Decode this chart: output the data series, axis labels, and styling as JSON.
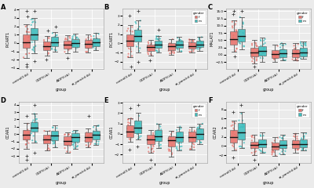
{
  "panels": [
    "A",
    "B",
    "C",
    "D",
    "E",
    "F"
  ],
  "ylabels": [
    "PICART1",
    "PICART1",
    "MALAT1",
    "CCAR1",
    "CCAR1",
    "CCAR2"
  ],
  "group_keys": [
    "control",
    "CIDP",
    "AIDP",
    "at_para"
  ],
  "group_labels": [
    "control(f-tb)",
    "CIDP(f-tb)",
    "AIDP(f-tb)",
    "at_para(nf-tb)"
  ],
  "gender_colors": {
    "f": "#E8736C",
    "m": "#3DBDBD"
  },
  "background": "#EBEBEB",
  "grid_color": "#FFFFFF",
  "panel_data": {
    "A": {
      "f": {
        "control": {
          "q1": -0.6,
          "median": 0.1,
          "q3": 1.0,
          "whislo": -1.8,
          "whishi": 2.2,
          "fliers_lo": [
            -2.5,
            -2.8
          ],
          "fliers_hi": [
            3.2,
            3.8
          ]
        },
        "CIDP": {
          "q1": -0.9,
          "median": -0.4,
          "q3": 0.2,
          "whislo": -1.5,
          "whishi": 0.8,
          "fliers_lo": [
            -2.0
          ],
          "fliers_hi": [
            1.5
          ]
        },
        "AIDP": {
          "q1": -0.7,
          "median": -0.2,
          "q3": 0.3,
          "whislo": -1.2,
          "whishi": 0.9,
          "fliers_lo": [
            -1.8
          ],
          "fliers_hi": []
        },
        "at_para": {
          "q1": -0.6,
          "median": -0.1,
          "q3": 0.4,
          "whislo": -1.1,
          "whishi": 1.0,
          "fliers_lo": [],
          "fliers_hi": []
        }
      },
      "m": {
        "control": {
          "q1": 0.4,
          "median": 1.0,
          "q3": 1.8,
          "whislo": -1.2,
          "whishi": 3.0,
          "fliers_lo": [
            -2.2
          ],
          "fliers_hi": [
            3.8
          ]
        },
        "CIDP": {
          "q1": -0.4,
          "median": 0.1,
          "q3": 0.7,
          "whislo": -1.0,
          "whishi": 1.3,
          "fliers_lo": [],
          "fliers_hi": [
            2.0
          ]
        },
        "AIDP": {
          "q1": -0.5,
          "median": 0.0,
          "q3": 0.5,
          "whislo": -1.0,
          "whishi": 1.1,
          "fliers_lo": [],
          "fliers_hi": []
        },
        "at_para": {
          "q1": -0.4,
          "median": 0.1,
          "q3": 0.6,
          "whislo": -0.9,
          "whishi": 1.2,
          "fliers_lo": [],
          "fliers_hi": []
        }
      }
    },
    "B": {
      "f": {
        "control": {
          "q1": -0.3,
          "median": 0.3,
          "q3": 1.0,
          "whislo": -1.5,
          "whishi": 2.0,
          "fliers_lo": [
            -2.5
          ],
          "fliers_hi": [
            3.0
          ]
        },
        "CIDP": {
          "q1": -0.8,
          "median": -0.4,
          "q3": -0.1,
          "whislo": -1.3,
          "whishi": 0.4,
          "fliers_lo": [
            -1.8
          ],
          "fliers_hi": []
        },
        "AIDP": {
          "q1": -0.7,
          "median": -0.3,
          "q3": 0.0,
          "whislo": -1.2,
          "whishi": 0.5,
          "fliers_lo": [],
          "fliers_hi": []
        },
        "at_para": {
          "q1": -0.6,
          "median": -0.3,
          "q3": 0.1,
          "whislo": -1.0,
          "whishi": 0.5,
          "fliers_lo": [],
          "fliers_hi": []
        }
      },
      "m": {
        "control": {
          "q1": 0.2,
          "median": 0.8,
          "q3": 1.5,
          "whislo": -1.0,
          "whishi": 2.5,
          "fliers_lo": [
            -2.0
          ],
          "fliers_hi": [
            3.5
          ]
        },
        "CIDP": {
          "q1": -0.5,
          "median": -0.1,
          "q3": 0.3,
          "whislo": -1.0,
          "whishi": 0.8,
          "fliers_lo": [],
          "fliers_hi": [
            1.5
          ]
        },
        "AIDP": {
          "q1": -0.5,
          "median": -0.1,
          "q3": 0.3,
          "whislo": -0.9,
          "whishi": 0.7,
          "fliers_lo": [],
          "fliers_hi": []
        },
        "at_para": {
          "q1": -0.4,
          "median": -0.1,
          "q3": 0.3,
          "whislo": -0.8,
          "whishi": 0.7,
          "fliers_lo": [],
          "fliers_hi": []
        }
      }
    },
    "C": {
      "f": {
        "control": {
          "q1": 3.5,
          "median": 5.5,
          "q3": 8.0,
          "whislo": 1.0,
          "whishi": 12.0,
          "fliers_lo": [
            -0.5
          ],
          "fliers_hi": [
            14.0,
            15.0
          ]
        },
        "CIDP": {
          "q1": -0.5,
          "median": 0.8,
          "q3": 2.5,
          "whislo": -3.0,
          "whishi": 5.0,
          "fliers_lo": [
            -4.0
          ],
          "fliers_hi": []
        },
        "AIDP": {
          "q1": -1.0,
          "median": 0.2,
          "q3": 1.5,
          "whislo": -2.5,
          "whishi": 3.5,
          "fliers_lo": [],
          "fliers_hi": []
        },
        "at_para": {
          "q1": -0.8,
          "median": 0.5,
          "q3": 2.0,
          "whislo": -2.0,
          "whishi": 4.0,
          "fliers_lo": [],
          "fliers_hi": []
        }
      },
      "m": {
        "control": {
          "q1": 4.5,
          "median": 6.5,
          "q3": 9.0,
          "whislo": 2.0,
          "whishi": 13.0,
          "fliers_lo": [],
          "fliers_hi": [
            15.0
          ]
        },
        "CIDP": {
          "q1": -0.3,
          "median": 1.2,
          "q3": 3.0,
          "whislo": -2.5,
          "whishi": 6.0,
          "fliers_lo": [],
          "fliers_hi": []
        },
        "AIDP": {
          "q1": -0.8,
          "median": 0.5,
          "q3": 2.0,
          "whislo": -2.0,
          "whishi": 4.0,
          "fliers_lo": [],
          "fliers_hi": []
        },
        "at_para": {
          "q1": -0.5,
          "median": 0.8,
          "q3": 2.5,
          "whislo": -1.5,
          "whishi": 4.5,
          "fliers_lo": [],
          "fliers_hi": []
        }
      }
    },
    "D": {
      "f": {
        "control": {
          "q1": -0.7,
          "median": -0.1,
          "q3": 0.6,
          "whislo": -2.0,
          "whishi": 1.5,
          "fliers_lo": [
            -3.0,
            -3.5
          ],
          "fliers_hi": [
            2.5
          ]
        },
        "CIDP": {
          "q1": -1.3,
          "median": -0.7,
          "q3": -0.1,
          "whislo": -2.2,
          "whishi": 0.5,
          "fliers_lo": [],
          "fliers_hi": []
        },
        "AIDP": {
          "q1": -1.5,
          "median": -0.9,
          "q3": -0.3,
          "whislo": -2.5,
          "whishi": 0.2,
          "fliers_lo": [],
          "fliers_hi": []
        },
        "at_para": {
          "q1": -1.0,
          "median": -0.4,
          "q3": 0.2,
          "whislo": -1.8,
          "whishi": 0.8,
          "fliers_lo": [],
          "fliers_hi": [
            2.5
          ]
        }
      },
      "m": {
        "control": {
          "q1": 0.3,
          "median": 0.9,
          "q3": 1.6,
          "whislo": -1.2,
          "whishi": 2.8,
          "fliers_lo": [
            -2.5
          ],
          "fliers_hi": [
            4.0
          ]
        },
        "CIDP": {
          "q1": -0.8,
          "median": -0.2,
          "q3": 0.5,
          "whislo": -1.8,
          "whishi": 1.2,
          "fliers_lo": [],
          "fliers_hi": []
        },
        "AIDP": {
          "q1": -1.0,
          "median": -0.4,
          "q3": 0.1,
          "whislo": -2.0,
          "whishi": 0.6,
          "fliers_lo": [],
          "fliers_hi": []
        },
        "at_para": {
          "q1": -0.7,
          "median": -0.1,
          "q3": 0.5,
          "whislo": -1.5,
          "whishi": 1.2,
          "fliers_lo": [],
          "fliers_hi": []
        }
      }
    },
    "E": {
      "f": {
        "control": {
          "q1": -0.3,
          "median": 0.2,
          "q3": 0.8,
          "whislo": -0.8,
          "whishi": 1.5,
          "fliers_lo": [
            -1.5
          ],
          "fliers_hi": [
            2.5
          ]
        },
        "CIDP": {
          "q1": -1.0,
          "median": -0.5,
          "q3": -0.1,
          "whislo": -1.8,
          "whishi": 0.4,
          "fliers_lo": [
            -2.5
          ],
          "fliers_hi": []
        },
        "AIDP": {
          "q1": -1.2,
          "median": -0.6,
          "q3": -0.2,
          "whislo": -2.2,
          "whishi": 0.3,
          "fliers_lo": [],
          "fliers_hi": []
        },
        "at_para": {
          "q1": -0.8,
          "median": -0.3,
          "q3": 0.2,
          "whislo": -1.5,
          "whishi": 0.7,
          "fliers_lo": [],
          "fliers_hi": []
        }
      },
      "m": {
        "control": {
          "q1": 0.1,
          "median": 0.6,
          "q3": 1.3,
          "whislo": -0.5,
          "whishi": 2.0,
          "fliers_lo": [
            -1.2
          ],
          "fliers_hi": [
            2.8
          ]
        },
        "CIDP": {
          "q1": -0.7,
          "median": -0.2,
          "q3": 0.4,
          "whislo": -1.4,
          "whishi": 1.0,
          "fliers_lo": [],
          "fliers_hi": []
        },
        "AIDP": {
          "q1": -0.8,
          "median": -0.3,
          "q3": 0.2,
          "whislo": -1.6,
          "whishi": 0.7,
          "fliers_lo": [],
          "fliers_hi": []
        },
        "at_para": {
          "q1": -0.5,
          "median": 0.0,
          "q3": 0.5,
          "whislo": -1.0,
          "whishi": 1.0,
          "fliers_lo": [],
          "fliers_hi": []
        }
      }
    },
    "F": {
      "f": {
        "control": {
          "q1": 0.8,
          "median": 2.0,
          "q3": 3.5,
          "whislo": -1.0,
          "whishi": 5.5,
          "fliers_lo": [
            -2.5
          ],
          "fliers_hi": [
            7.5
          ]
        },
        "CIDP": {
          "q1": -0.5,
          "median": 0.2,
          "q3": 1.0,
          "whislo": -2.0,
          "whishi": 2.5,
          "fliers_lo": [
            -3.0
          ],
          "fliers_hi": []
        },
        "AIDP": {
          "q1": -0.8,
          "median": -0.1,
          "q3": 0.7,
          "whislo": -2.2,
          "whishi": 2.0,
          "fliers_lo": [],
          "fliers_hi": []
        },
        "at_para": {
          "q1": -0.4,
          "median": 0.4,
          "q3": 1.2,
          "whislo": -1.5,
          "whishi": 2.8,
          "fliers_lo": [],
          "fliers_hi": []
        }
      },
      "m": {
        "control": {
          "q1": 1.5,
          "median": 3.0,
          "q3": 5.0,
          "whislo": -0.5,
          "whishi": 7.5,
          "fliers_lo": [],
          "fliers_hi": [
            9.0
          ]
        },
        "CIDP": {
          "q1": -0.3,
          "median": 0.5,
          "q3": 1.5,
          "whislo": -1.5,
          "whishi": 3.0,
          "fliers_lo": [],
          "fliers_hi": []
        },
        "AIDP": {
          "q1": -0.5,
          "median": 0.2,
          "q3": 1.2,
          "whislo": -1.8,
          "whishi": 2.5,
          "fliers_lo": [],
          "fliers_hi": []
        },
        "at_para": {
          "q1": -0.2,
          "median": 0.5,
          "q3": 1.5,
          "whislo": -1.0,
          "whishi": 3.0,
          "fliers_lo": [],
          "fliers_hi": []
        }
      }
    }
  },
  "figsize": [
    4.0,
    2.4
  ],
  "dpi": 100
}
